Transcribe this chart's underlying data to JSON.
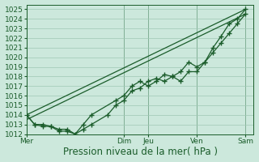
{
  "title": "",
  "xlabel": "Pression niveau de la mer( hPa )",
  "ylim": [
    1012,
    1025.5
  ],
  "ylim_display": [
    1012,
    1025
  ],
  "bg_color": "#cce8dc",
  "grid_color": "#9fc8b4",
  "line_color": "#1a5c2a",
  "xtick_labels": [
    "Mer",
    "Dim",
    "Jeu",
    "Ven",
    "Sam"
  ],
  "xtick_positions": [
    0,
    48,
    60,
    84,
    108
  ],
  "total_points": 112,
  "vline_x": [
    0,
    48,
    60,
    84,
    108
  ],
  "straight_line1": [
    [
      0,
      1014.0
    ],
    [
      108,
      1025.0
    ]
  ],
  "straight_line2": [
    [
      0,
      1013.5
    ],
    [
      108,
      1024.5
    ]
  ],
  "marker_line1_x": [
    0,
    4,
    8,
    12,
    16,
    20,
    24,
    28,
    32,
    44,
    48,
    52,
    56,
    60,
    64,
    68,
    72,
    76,
    80,
    84,
    88,
    92,
    96,
    100,
    104,
    108
  ],
  "marker_line1_y": [
    1014.0,
    1013.0,
    1013.0,
    1012.8,
    1012.5,
    1012.5,
    1012.0,
    1013.0,
    1014.0,
    1015.5,
    1016.0,
    1017.0,
    1017.5,
    1017.0,
    1017.5,
    1018.2,
    1018.0,
    1018.5,
    1019.5,
    1019.0,
    1019.5,
    1021.0,
    1022.2,
    1023.5,
    1024.0,
    1025.0
  ],
  "marker_line2_x": [
    0,
    4,
    8,
    12,
    16,
    20,
    24,
    28,
    32,
    40,
    44,
    48,
    52,
    56,
    60,
    64,
    68,
    72,
    76,
    80,
    84,
    88,
    92,
    96,
    100,
    104,
    108
  ],
  "marker_line2_y": [
    1014.0,
    1013.0,
    1012.8,
    1012.8,
    1012.3,
    1012.3,
    1012.0,
    1012.5,
    1013.0,
    1014.0,
    1015.0,
    1015.5,
    1016.5,
    1016.8,
    1017.5,
    1017.8,
    1017.5,
    1018.0,
    1017.5,
    1018.5,
    1018.5,
    1019.5,
    1020.5,
    1021.5,
    1022.5,
    1023.5,
    1024.5
  ],
  "xlabel_fontsize": 8.5,
  "tick_fontsize": 6.5
}
